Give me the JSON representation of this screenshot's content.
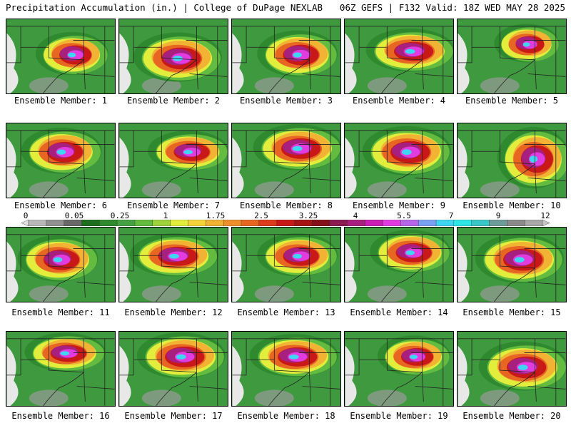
{
  "header": {
    "left_title": "Precipitation Accumulation (in.) | College of DuPage NEXLAB",
    "right_title": "06Z GEFS | F132 Valid: 18Z WED MAY 28 2025"
  },
  "legend": {
    "labels": [
      "0",
      "0.05",
      "0.25",
      "1",
      "1.75",
      "2.5",
      "3.25",
      "4",
      "5.5",
      "7",
      "9",
      "12"
    ],
    "colors": [
      "#e0e0e0",
      "#b8b8b8",
      "#909090",
      "#686868",
      "#1f6e1f",
      "#2f8a2f",
      "#44a244",
      "#63bb3f",
      "#9fd23a",
      "#e2ee3b",
      "#f6d23a",
      "#f2b234",
      "#ec8f2c",
      "#e66622",
      "#de3b1c",
      "#c81818",
      "#a41414",
      "#84101a",
      "#8c1a52",
      "#a8207f",
      "#c81eb4",
      "#e23be0",
      "#b466e6",
      "#7aa0f2",
      "#3fd6f2",
      "#2fe6e6",
      "#3ac6c6",
      "#6e9a9a",
      "#8a8a8a",
      "#a8a8a8",
      "#c6c6c6"
    ]
  },
  "members": [
    {
      "label": "Ensemble Member: 1"
    },
    {
      "label": "Ensemble Member: 2"
    },
    {
      "label": "Ensemble Member: 3"
    },
    {
      "label": "Ensemble Member: 4"
    },
    {
      "label": "Ensemble Member: 5"
    },
    {
      "label": "Ensemble Member: 6"
    },
    {
      "label": "Ensemble Member: 7"
    },
    {
      "label": "Ensemble Member: 8"
    },
    {
      "label": "Ensemble Member: 9"
    },
    {
      "label": "Ensemble Member: 10"
    },
    {
      "label": "Ensemble Member: 11"
    },
    {
      "label": "Ensemble Member: 12"
    },
    {
      "label": "Ensemble Member: 13"
    },
    {
      "label": "Ensemble Member: 14"
    },
    {
      "label": "Ensemble Member: 15"
    },
    {
      "label": "Ensemble Member: 16"
    },
    {
      "label": "Ensemble Member: 17"
    },
    {
      "label": "Ensemble Member: 18"
    },
    {
      "label": "Ensemble Member: 19"
    },
    {
      "label": "Ensemble Member: 20"
    }
  ]
}
